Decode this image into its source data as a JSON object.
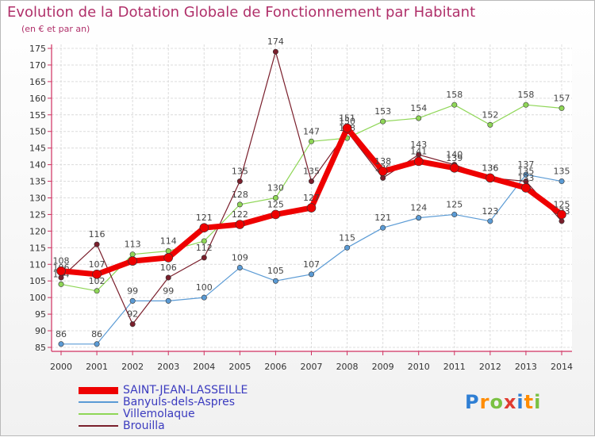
{
  "title": "Evolution de la Dotation Globale de Fonctionnement par Habitant",
  "subtitle": "(en € et par an)",
  "logo": [
    "P",
    "r",
    "o",
    "x",
    "i",
    "t",
    "i"
  ],
  "logo_colors": [
    "#2f7fd4",
    "#ff8c00",
    "#7ac143",
    "#e03c31",
    "#2f7fd4",
    "#ff8c00",
    "#7ac143"
  ],
  "chart_data": {
    "type": "line",
    "x": [
      2000,
      2001,
      2002,
      2003,
      2004,
      2005,
      2006,
      2007,
      2008,
      2009,
      2010,
      2011,
      2012,
      2013,
      2014
    ],
    "ylim": [
      85,
      175
    ],
    "yticks": [
      85,
      90,
      95,
      100,
      105,
      110,
      115,
      120,
      125,
      130,
      135,
      140,
      145,
      150,
      155,
      160,
      165,
      170,
      175
    ],
    "grid": true,
    "legend_position": "bottom-left",
    "series": [
      {
        "name": "Banyuls-dels-Aspres",
        "color": "#5b9bd5",
        "line_width": 1.2,
        "values": [
          86,
          86,
          99,
          99,
          100,
          109,
          105,
          107,
          115,
          121,
          124,
          125,
          123,
          137,
          135
        ]
      },
      {
        "name": "Villemolaque",
        "color": "#8fd657",
        "line_width": 1.2,
        "values": [
          104,
          102,
          113,
          114,
          117,
          128,
          130,
          147,
          148,
          153,
          154,
          158,
          152,
          158,
          157
        ]
      },
      {
        "name": "Brouilla",
        "color": "#7a1f2c",
        "line_width": 1.2,
        "values": [
          106,
          116,
          92,
          106,
          112,
          135,
          174,
          135,
          150,
          136,
          143,
          140,
          136,
          135,
          123
        ]
      },
      {
        "name": "SAINT-JEAN-LASSEILLE",
        "color": "#ee0000",
        "line_width": 7,
        "values": [
          108,
          107,
          111,
          112,
          121,
          122,
          125,
          127,
          151,
          138,
          141,
          139,
          136,
          133,
          125
        ]
      }
    ],
    "data_labels": [
      [
        "86",
        "86",
        "99",
        "99",
        "100",
        "109",
        "105",
        "107",
        "115",
        "121",
        "124",
        "125",
        "123",
        "137",
        "135"
      ],
      [
        "104",
        "102",
        "113",
        "114",
        "",
        "128",
        "130",
        "147",
        "148",
        "153",
        "154",
        "158",
        "152",
        "158",
        "157"
      ],
      [
        "106",
        "116",
        "92",
        "106",
        "112",
        "135",
        "174",
        "135",
        "150",
        "136",
        "143",
        "140",
        "136",
        "135",
        "123"
      ],
      [
        "108",
        "107",
        "",
        "",
        "121",
        "122",
        "125",
        "127",
        "151",
        "138",
        "141",
        "139",
        "136",
        "133",
        "125"
      ]
    ]
  }
}
